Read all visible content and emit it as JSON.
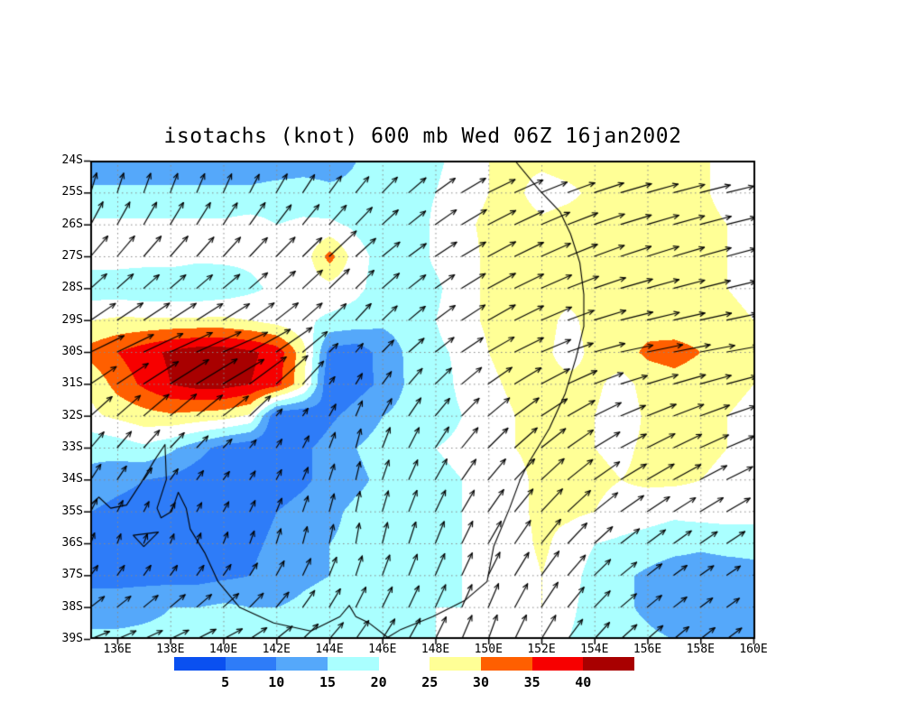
{
  "chart_data": {
    "type": "heatmap",
    "subtype": "filled-isotach-contours-with-wind-vectors",
    "title": "isotachs (knot) 600 mb Wed 06Z 16jan2002",
    "variable": "isotachs",
    "units": "knot",
    "level": "600 mb",
    "valid_time": "Wed 06Z 16jan2002",
    "lon_domain_east": [
      135,
      160
    ],
    "lat_domain_south": [
      24,
      39
    ],
    "grid_on": true,
    "axes": {
      "lat_labels": [
        "24S",
        "25S",
        "26S",
        "27S",
        "28S",
        "29S",
        "30S",
        "31S",
        "32S",
        "33S",
        "34S",
        "35S",
        "36S",
        "37S",
        "38S",
        "39S"
      ],
      "lon_labels": [
        "136E",
        "138E",
        "140E",
        "142E",
        "144E",
        "146E",
        "148E",
        "150E",
        "152E",
        "154E",
        "156E",
        "158E",
        "160E"
      ]
    },
    "colorbar": {
      "thresholds": [
        5,
        10,
        15,
        20,
        25,
        30,
        35,
        40
      ],
      "labels": [
        "5",
        "10",
        "15",
        "20",
        "25",
        "30",
        "35",
        "40"
      ],
      "band_colors": [
        "#0a50f0",
        "#2e7cf8",
        "#55a8fa",
        "#aaffff",
        "#ffffff",
        "#ffff96",
        "#ff5f00",
        "#f70000",
        "#a80000"
      ]
    },
    "isotach_grid_knots": {
      "lons": [
        135,
        136,
        137,
        138,
        139,
        140,
        141,
        142,
        143,
        144,
        145,
        146,
        147,
        148,
        149,
        150,
        151,
        152,
        153,
        154,
        155,
        156,
        157,
        158,
        159,
        160
      ],
      "lats_south": [
        24,
        25,
        26,
        27,
        28,
        29,
        30,
        31,
        32,
        33,
        34,
        35,
        36,
        37,
        38,
        39
      ],
      "values": [
        [
          12,
          12,
          12,
          12,
          12,
          12,
          12,
          12,
          13,
          13,
          15,
          17,
          18,
          19,
          22,
          25,
          26,
          26,
          27,
          27,
          27,
          27,
          27,
          26,
          23,
          22
        ],
        [
          16,
          16,
          16,
          16,
          16,
          16,
          16,
          17,
          17,
          16,
          16,
          17,
          18,
          20,
          23,
          25,
          26,
          23,
          24,
          26,
          27,
          27,
          27,
          26,
          23,
          22
        ],
        [
          21,
          21,
          21,
          21,
          21,
          21,
          22,
          20,
          21,
          21,
          19,
          17,
          17,
          21,
          24,
          26,
          27,
          26,
          27,
          27,
          27,
          28,
          27,
          27,
          25,
          24
        ],
        [
          22,
          22,
          22,
          22,
          21,
          21,
          21,
          22,
          22,
          32,
          22,
          18,
          17,
          21,
          23,
          26,
          27,
          27,
          27,
          27,
          27,
          28,
          27,
          27,
          25,
          24
        ],
        [
          17,
          17,
          16,
          16,
          16,
          17,
          19,
          21,
          22,
          23,
          21,
          18,
          17,
          19,
          23,
          26,
          27,
          28,
          28,
          28,
          28,
          28,
          27,
          26,
          25,
          24
        ],
        [
          25,
          26,
          26,
          26,
          26,
          26,
          25,
          23,
          21,
          19,
          18,
          16,
          17,
          20,
          23,
          26,
          27,
          28,
          23,
          28,
          28,
          28,
          27,
          27,
          26,
          25
        ],
        [
          32,
          35,
          38,
          41,
          43,
          43,
          41,
          38,
          27,
          8,
          7,
          12,
          16,
          19,
          21,
          25,
          27,
          27,
          22,
          27,
          28,
          31,
          32,
          30,
          27,
          26
        ],
        [
          26,
          32,
          36,
          40,
          42,
          42,
          40,
          37,
          26,
          5,
          8,
          11,
          16,
          18,
          21,
          24,
          26,
          27,
          27,
          26,
          23,
          27,
          28,
          27,
          26,
          25
        ],
        [
          24,
          26,
          28,
          29,
          28,
          27,
          24,
          5,
          5,
          9,
          12,
          15,
          17,
          18,
          20,
          23,
          25,
          26,
          26,
          25,
          22,
          26,
          27,
          26,
          25,
          24
        ],
        [
          16,
          17,
          19,
          16,
          12,
          8,
          6,
          6,
          9,
          12,
          15,
          17,
          18,
          20,
          21,
          23,
          25,
          26,
          26,
          25,
          24,
          26,
          26,
          26,
          25,
          24
        ],
        [
          14,
          12,
          10,
          9,
          7,
          6,
          6,
          7,
          9,
          12,
          14,
          16,
          17,
          19,
          20,
          22,
          24,
          26,
          27,
          26,
          25,
          26,
          26,
          25,
          24,
          23
        ],
        [
          10,
          8,
          7,
          6,
          6,
          7,
          8,
          10,
          12,
          14,
          16,
          17,
          18,
          19,
          20,
          22,
          24,
          26,
          26,
          25,
          23,
          22,
          21,
          22,
          22,
          22
        ],
        [
          7,
          6,
          6,
          6,
          7,
          8,
          9,
          11,
          13,
          15,
          16,
          17,
          18,
          19,
          20,
          21,
          23,
          26,
          23,
          20,
          19,
          18,
          17,
          16,
          17,
          17
        ],
        [
          8,
          8,
          8,
          8,
          8,
          9,
          10,
          12,
          14,
          15,
          16,
          17,
          18,
          19,
          20,
          21,
          22,
          25,
          22,
          18,
          16,
          14,
          12,
          12,
          12,
          13
        ],
        [
          13,
          13,
          14,
          15,
          15,
          16,
          15,
          15,
          16,
          17,
          18,
          18,
          19,
          20,
          20,
          21,
          22,
          25,
          21,
          18,
          16,
          14,
          12,
          11,
          11,
          12
        ],
        [
          16,
          16,
          16,
          16,
          17,
          17,
          16,
          16,
          17,
          17,
          18,
          19,
          19,
          20,
          21,
          21,
          22,
          23,
          20,
          18,
          17,
          16,
          15,
          14,
          14,
          15
        ]
      ]
    },
    "wind_direction_deg_ccw_from_east": {
      "lons": [
        135,
        140,
        145,
        150,
        155,
        160
      ],
      "lats_south": [
        24,
        27,
        30,
        33,
        36,
        39
      ],
      "values": [
        [
          85,
          75,
          55,
          25,
          15,
          12
        ],
        [
          50,
          48,
          42,
          28,
          18,
          14
        ],
        [
          26,
          24,
          50,
          30,
          12,
          10
        ],
        [
          50,
          45,
          75,
          45,
          28,
          22
        ],
        [
          70,
          68,
          80,
          60,
          38,
          32
        ],
        [
          22,
          28,
          55,
          70,
          42,
          35
        ]
      ]
    },
    "wind_vector_grid": {
      "lon_start": 135,
      "lon_end": 160,
      "lon_step": 1,
      "lat_start": 25,
      "lat_end": 39,
      "lat_step": 1
    },
    "coastline_lon_lat": [
      [
        151.0,
        24.0
      ],
      [
        151.9,
        24.9
      ],
      [
        152.7,
        25.6
      ],
      [
        153.1,
        26.3
      ],
      [
        153.45,
        27.2
      ],
      [
        153.6,
        28.2
      ],
      [
        153.6,
        29.2
      ],
      [
        153.3,
        30.2
      ],
      [
        152.9,
        31.3
      ],
      [
        152.3,
        32.4
      ],
      [
        151.5,
        33.5
      ],
      [
        151.2,
        34.0
      ],
      [
        150.8,
        34.9
      ],
      [
        150.2,
        36.1
      ],
      [
        149.95,
        37.2
      ],
      [
        149.1,
        37.8
      ],
      [
        147.9,
        38.3
      ],
      [
        146.7,
        38.7
      ],
      [
        146.2,
        38.95
      ],
      [
        145.5,
        38.5
      ],
      [
        145.0,
        38.3
      ],
      [
        144.75,
        37.95
      ],
      [
        144.4,
        38.3
      ],
      [
        143.3,
        38.75
      ],
      [
        141.9,
        38.5
      ],
      [
        140.6,
        38.0
      ],
      [
        139.8,
        37.2
      ],
      [
        139.3,
        36.3
      ],
      [
        138.75,
        35.55
      ],
      [
        138.6,
        34.9
      ],
      [
        138.3,
        34.4
      ],
      [
        138.05,
        35.0
      ],
      [
        137.65,
        35.2
      ],
      [
        137.5,
        34.9
      ],
      [
        137.85,
        34.0
      ],
      [
        137.8,
        32.9
      ],
      [
        137.4,
        33.4
      ],
      [
        136.9,
        34.1
      ],
      [
        136.35,
        34.8
      ],
      [
        135.75,
        34.9
      ],
      [
        135.3,
        34.55
      ],
      [
        135.0,
        34.8
      ]
    ],
    "islands": [
      [
        [
          136.6,
          35.75
        ],
        [
          137.55,
          35.65
        ],
        [
          137.0,
          36.1
        ]
      ]
    ]
  }
}
